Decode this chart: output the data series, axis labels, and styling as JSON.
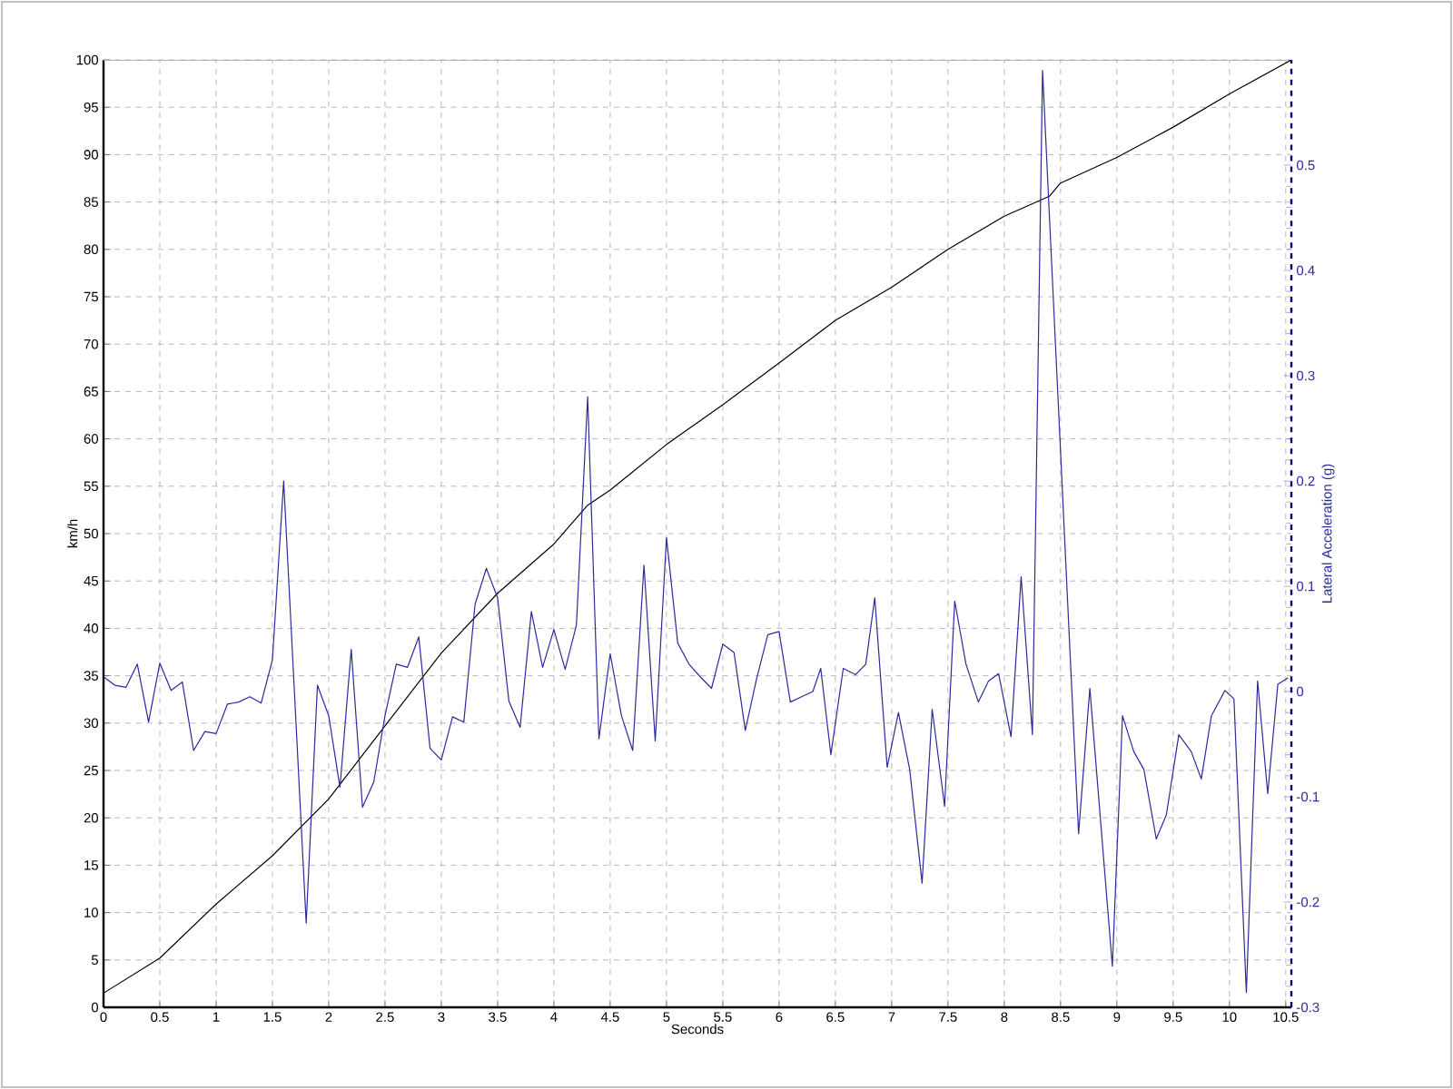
{
  "chart_data": {
    "type": "line",
    "xlabel": "Seconds",
    "ylabel": "km/h",
    "y2label": "Lateral Acceleration (g)",
    "xlim": [
      0,
      10.55
    ],
    "xticks": [
      0,
      0.5,
      1,
      1.5,
      2,
      2.5,
      3,
      3.5,
      4,
      4.5,
      5,
      5.5,
      6,
      6.5,
      7,
      7.5,
      8,
      8.5,
      9,
      9.5,
      10,
      10.5
    ],
    "ylim": [
      0,
      100
    ],
    "yticks": [
      0,
      5,
      10,
      15,
      20,
      25,
      30,
      35,
      40,
      45,
      50,
      55,
      60,
      65,
      70,
      75,
      80,
      85,
      90,
      95,
      100
    ],
    "y2lim": [
      -0.3,
      0.6
    ],
    "y2ticks": [
      -0.3,
      -0.2,
      -0.1,
      0,
      0.1,
      0.2,
      0.3,
      0.4,
      0.5
    ],
    "grid": true,
    "series": [
      {
        "color": "#000000",
        "x": [
          0,
          0.5,
          1,
          1.5,
          2,
          2.5,
          3,
          3.5,
          4,
          4.3,
          4.5,
          5,
          5.5,
          6,
          6.5,
          7,
          7.5,
          8,
          8.4,
          8.5,
          9,
          9.5,
          10,
          10.55
        ],
        "values": [
          1.5,
          5.2,
          10.9,
          16,
          22,
          29.7,
          37.4,
          43.7,
          48.9,
          53,
          54.6,
          59.4,
          63.6,
          68,
          72.5,
          76,
          80,
          83.5,
          85.6,
          87,
          89.7,
          92.9,
          96.4,
          100
        ]
      },
      {
        "color": "#2a2a9c",
        "axis": "y2",
        "x": [
          0,
          0.1,
          0.2,
          0.3,
          0.4,
          0.5,
          0.6,
          0.7,
          0.8,
          0.9,
          1.0,
          1.1,
          1.2,
          1.3,
          1.4,
          1.5,
          1.6,
          1.8,
          1.9,
          2.0,
          2.1,
          2.2,
          2.3,
          2.4,
          2.5,
          2.6,
          2.7,
          2.8,
          2.9,
          3.0,
          3.1,
          3.2,
          3.3,
          3.4,
          3.5,
          3.6,
          3.7,
          3.8,
          3.9,
          4.0,
          4.1,
          4.2,
          4.3,
          4.4,
          4.5,
          4.6,
          4.7,
          4.8,
          4.9,
          5.0,
          5.1,
          5.2,
          5.3,
          5.4,
          5.5,
          5.6,
          5.7,
          5.8,
          5.9,
          6.0,
          6.1,
          6.2,
          6.3,
          6.37,
          6.46,
          6.57,
          6.68,
          6.77,
          6.85,
          6.96,
          7.06,
          7.16,
          7.27,
          7.36,
          7.47,
          7.56,
          7.66,
          7.77,
          7.86,
          7.95,
          8.06,
          8.15,
          8.25,
          8.34,
          8.66,
          8.76,
          8.96,
          9.05,
          9.15,
          9.24,
          9.35,
          9.44,
          9.55,
          9.66,
          9.75,
          9.84,
          9.96,
          10.04,
          10.15,
          10.25,
          10.34,
          10.43,
          10.52
        ],
        "values": [
          0.014,
          0.006,
          0.004,
          0.026,
          -0.029,
          0.027,
          0.001,
          0.009,
          -0.056,
          -0.038,
          -0.04,
          -0.012,
          -0.01,
          -0.005,
          -0.011,
          0.03,
          0.2,
          -0.22,
          0.006,
          -0.023,
          -0.091,
          0.04,
          -0.11,
          -0.086,
          -0.023,
          0.026,
          0.023,
          0.052,
          -0.054,
          -0.065,
          -0.024,
          -0.029,
          0.083,
          0.117,
          0.089,
          -0.009,
          -0.034,
          0.076,
          0.023,
          0.059,
          0.021,
          0.063,
          0.28,
          -0.045,
          0.036,
          -0.023,
          -0.056,
          0.12,
          -0.047,
          0.146,
          0.046,
          0.026,
          0.014,
          0.003,
          0.045,
          0.037,
          -0.037,
          0.012,
          0.054,
          0.057,
          -0.01,
          -0.005,
          0.0,
          0.022,
          -0.06,
          0.022,
          0.016,
          0.026,
          0.089,
          -0.072,
          -0.02,
          -0.074,
          -0.182,
          -0.017,
          -0.109,
          0.086,
          0.026,
          -0.01,
          0.01,
          0.017,
          -0.043,
          0.109,
          -0.041,
          0.59,
          -0.135,
          0.003,
          -0.261,
          -0.023,
          -0.057,
          -0.074,
          -0.14,
          -0.117,
          -0.041,
          -0.057,
          -0.083,
          -0.023,
          0.001,
          -0.007,
          -0.286,
          0.01,
          -0.097,
          0.007,
          0.013
        ]
      }
    ]
  }
}
